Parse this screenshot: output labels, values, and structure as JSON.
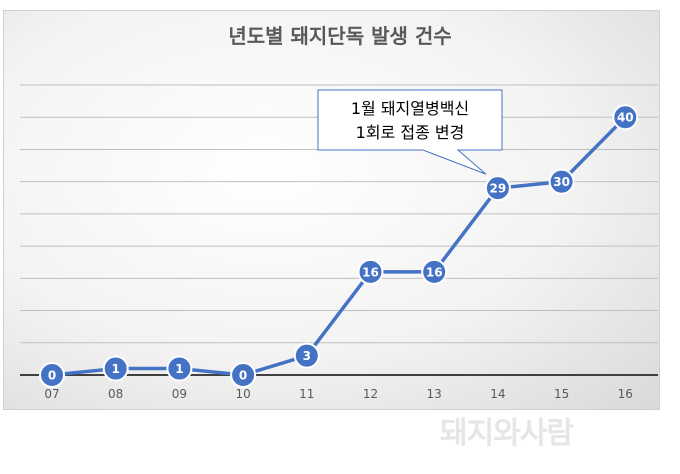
{
  "chart_data": {
    "type": "line",
    "title": "년도별 돼지단독 발생 건수",
    "categories": [
      "07",
      "08",
      "09",
      "10",
      "11",
      "12",
      "13",
      "14",
      "15",
      "16"
    ],
    "values": [
      0,
      1,
      1,
      0,
      3,
      16,
      16,
      29,
      30,
      40
    ],
    "ylim": [
      0,
      45
    ],
    "grid": true,
    "series_color": "#4472c4",
    "annotation": {
      "lines": [
        "1월 돼지열병백신",
        "1회로 접종 변경"
      ],
      "points_to": "14"
    }
  },
  "watermark": "돼지와사람"
}
